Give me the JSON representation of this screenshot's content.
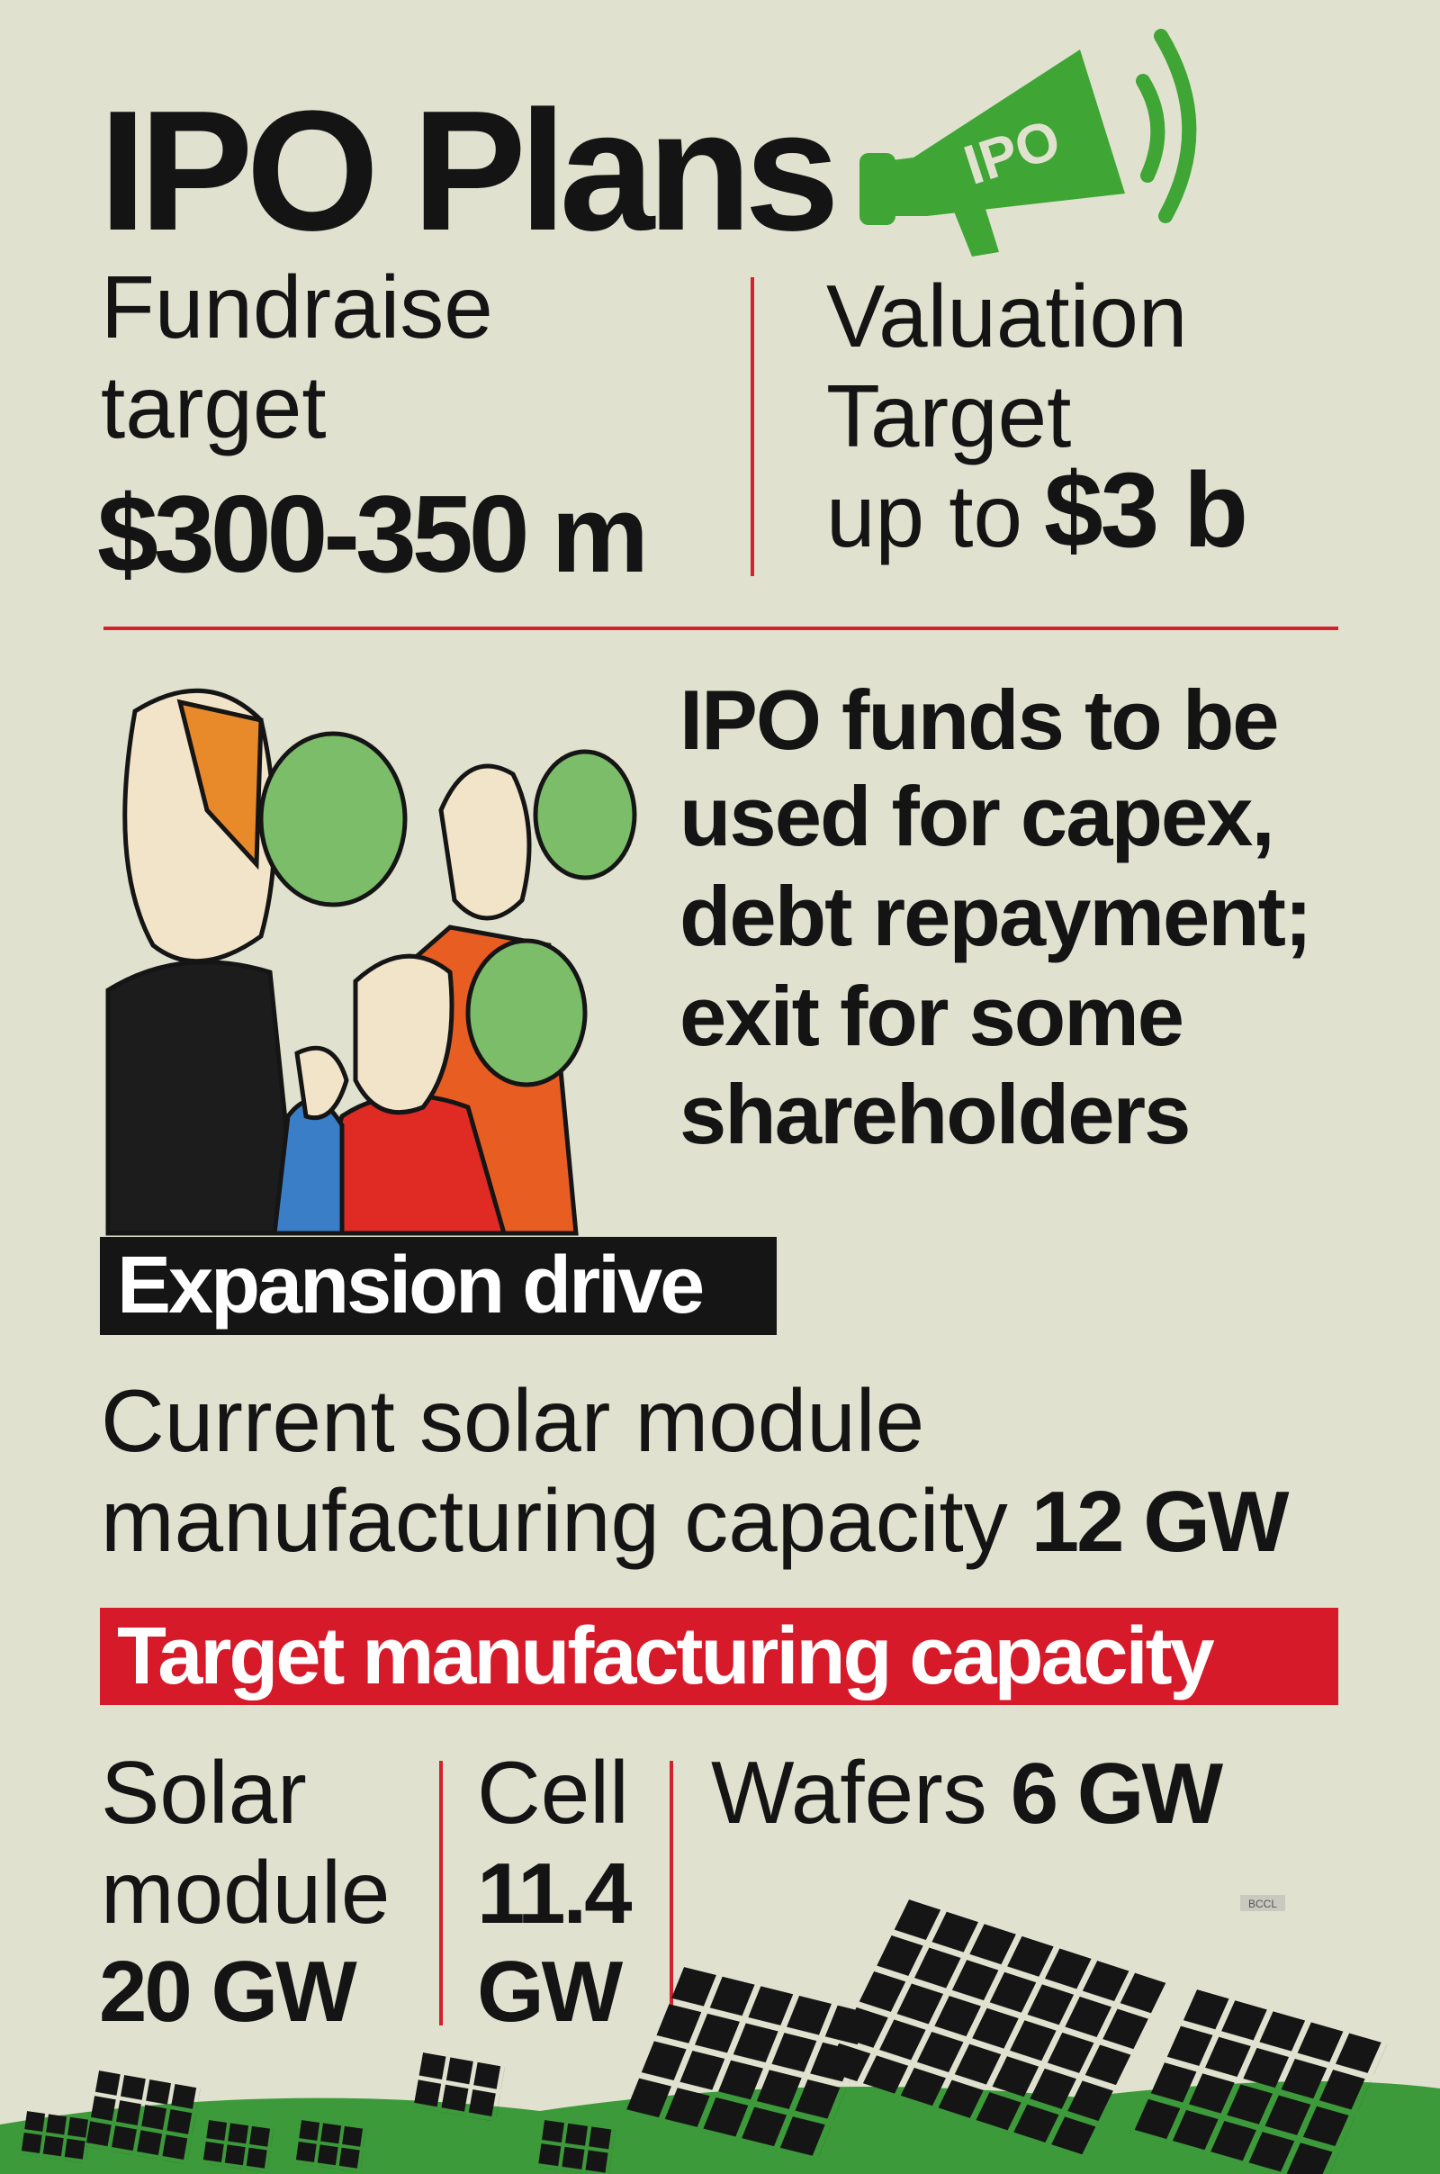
{
  "header": {
    "title": "IPO Plans",
    "megaphone_label": "IPO"
  },
  "targets": {
    "fundraise": {
      "label_lines": [
        "Fundraise",
        "target"
      ],
      "value": "$300-350 m"
    },
    "valuation": {
      "label_lines": [
        "Valuation",
        "Target"
      ],
      "prefix": "up to",
      "value": "$3 b"
    }
  },
  "funds_use": {
    "lines": [
      "IPO funds to be",
      "used for capex,",
      "debt repayment;",
      "exit for some",
      "shareholders"
    ]
  },
  "expansion": {
    "heading": "Expansion drive",
    "current": {
      "lines": [
        "Current solar module",
        "manufacturing capacity"
      ],
      "value": "12 GW"
    }
  },
  "target_capacity": {
    "heading": "Target manufacturing capacity",
    "items": [
      {
        "label_lines": [
          "Solar",
          "module"
        ],
        "value": "20 GW"
      },
      {
        "label": "Cell",
        "value_lines": [
          "11.4",
          "GW"
        ]
      },
      {
        "label": "Wafers",
        "value": "6 GW"
      }
    ]
  },
  "credit": "BCCL"
}
